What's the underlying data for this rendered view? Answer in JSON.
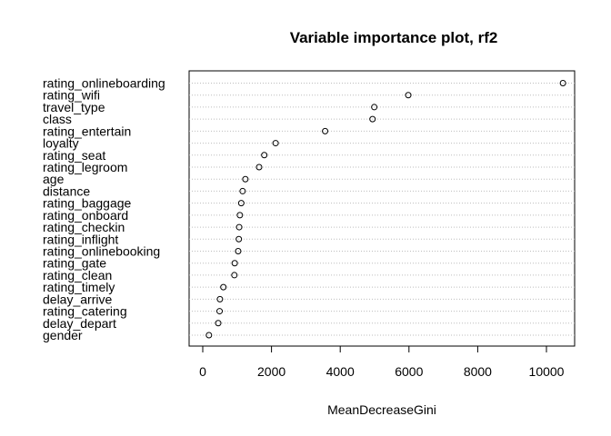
{
  "chart_data": {
    "type": "scatter",
    "title": "Variable importance plot, rf2",
    "xlabel": "MeanDecreaseGini",
    "ylabel": "",
    "xlim": [
      0,
      10500
    ],
    "xticks": [
      "0",
      "2000",
      "4000",
      "6000",
      "8000",
      "10000"
    ],
    "grid": "dotted horizontal lines",
    "categories": [
      "rating_onlineboarding",
      "rating_wifi",
      "travel_type",
      "class",
      "rating_entertain",
      "loyalty",
      "rating_seat",
      "rating_legroom",
      "age",
      "distance",
      "rating_baggage",
      "rating_onboard",
      "rating_checkin",
      "rating_inflight",
      "rating_onlinebooking",
      "rating_gate",
      "rating_clean",
      "rating_timely",
      "delay_arrive",
      "rating_catering",
      "delay_depart",
      "gender"
    ],
    "values": [
      10480,
      5980,
      4990,
      4940,
      3560,
      2120,
      1790,
      1640,
      1240,
      1160,
      1120,
      1080,
      1060,
      1050,
      1030,
      930,
      920,
      600,
      500,
      490,
      450,
      180
    ]
  }
}
